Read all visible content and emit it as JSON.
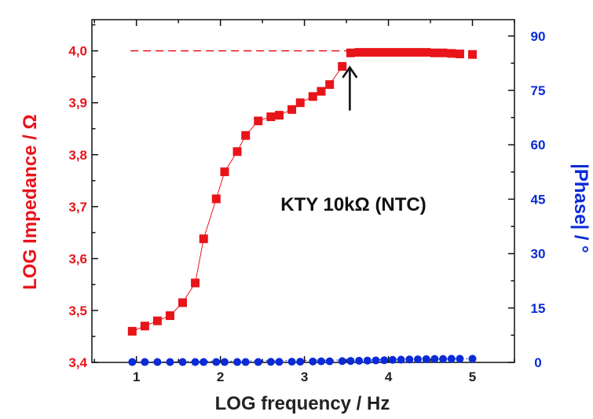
{
  "chart_data": {
    "type": "scatter",
    "title": "",
    "annotation": "KTY 10kΩ (NTC)",
    "xlabel": "LOG frequency / Hz",
    "ylabel_left": "LOG Impedance / Ω",
    "ylabel_right": "|Phase| / °",
    "xlim": [
      0.47,
      5.5
    ],
    "ylim_left": [
      3.4,
      4.06
    ],
    "ylim_right": [
      0,
      94.5
    ],
    "x_ticks": [
      "1",
      "2",
      "3",
      "4",
      "5"
    ],
    "y_left_ticks": [
      "3,4",
      "3,5",
      "3,6",
      "3,7",
      "3,8",
      "3,9",
      "4,0"
    ],
    "y_right_ticks": [
      "0",
      "15",
      "30",
      "45",
      "60",
      "75",
      "90"
    ],
    "colors": {
      "impedance": "#e8141a",
      "phase": "#0a2bd6",
      "text": "#111111"
    },
    "reference_line": {
      "y": 4.0,
      "x_start": 0.93,
      "x_end": 3.52,
      "style": "dashed"
    },
    "arrow_marker": {
      "x": 3.54,
      "y_tip": 3.968,
      "y_tail": 3.885
    },
    "series": [
      {
        "name": "LOG Impedance",
        "axis": "left",
        "marker": "square",
        "connect_upto": 3.45,
        "x": [
          0.95,
          1.1,
          1.25,
          1.4,
          1.55,
          1.7,
          1.8,
          1.95,
          2.05,
          2.2,
          2.3,
          2.45,
          2.6,
          2.7,
          2.85,
          2.95,
          3.1,
          3.2,
          3.3,
          3.45,
          3.55,
          3.65,
          3.75,
          3.85,
          3.95,
          4.05,
          4.15,
          4.25,
          4.35,
          4.45,
          4.55,
          4.65,
          4.75,
          4.85,
          5.0
        ],
        "y": [
          3.46,
          3.47,
          3.48,
          3.49,
          3.515,
          3.553,
          3.638,
          3.715,
          3.767,
          3.806,
          3.837,
          3.865,
          3.873,
          3.876,
          3.887,
          3.9,
          3.912,
          3.922,
          3.935,
          3.97,
          3.996,
          3.997,
          3.997,
          3.997,
          3.997,
          3.997,
          3.997,
          3.997,
          3.997,
          3.997,
          3.996,
          3.996,
          3.995,
          3.994,
          3.993
        ]
      },
      {
        "name": "|Phase|",
        "axis": "right",
        "marker": "circle",
        "connect_upto": 0,
        "x": [
          0.95,
          1.1,
          1.25,
          1.4,
          1.55,
          1.7,
          1.8,
          1.95,
          2.05,
          2.2,
          2.3,
          2.45,
          2.6,
          2.7,
          2.85,
          2.95,
          3.1,
          3.2,
          3.3,
          3.45,
          3.55,
          3.65,
          3.75,
          3.85,
          3.95,
          4.05,
          4.15,
          4.25,
          4.35,
          4.45,
          4.55,
          4.65,
          4.75,
          4.85,
          5.0
        ],
        "y": [
          0.1,
          0.1,
          0.1,
          0.1,
          0.1,
          0.1,
          0.1,
          0.1,
          0.1,
          0.1,
          0.1,
          0.1,
          0.15,
          0.15,
          0.2,
          0.2,
          0.25,
          0.3,
          0.3,
          0.35,
          0.4,
          0.45,
          0.5,
          0.55,
          0.6,
          0.7,
          0.75,
          0.8,
          0.85,
          0.9,
          0.95,
          0.95,
          1.0,
          1.0,
          1.0
        ]
      }
    ]
  }
}
